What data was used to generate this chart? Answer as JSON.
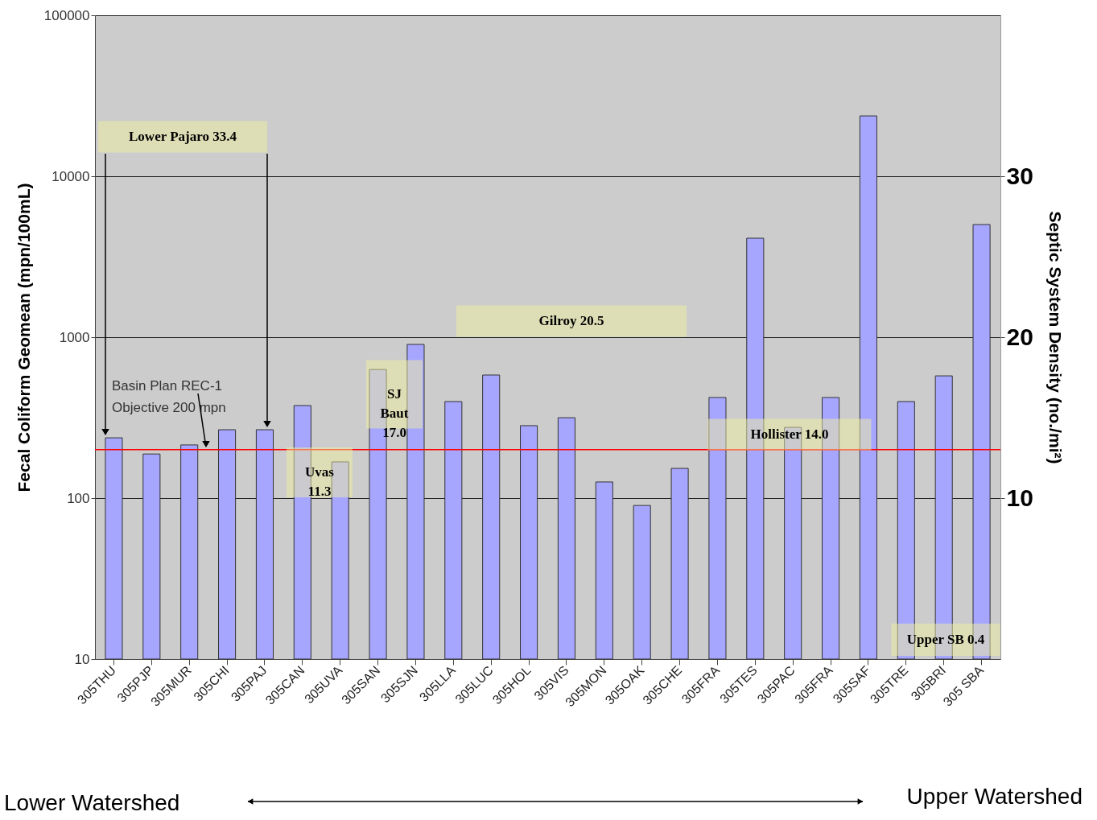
{
  "chart_data": {
    "type": "bar",
    "ylabel": "Fecal Coliform Geomean (mpn/100mL)",
    "y2label": "Septic System Density (no./mi²)",
    "categories": [
      "305THU",
      "305PJP",
      "305MUR",
      "305CHI",
      "305PAJ",
      "305CAN",
      "305UVA",
      "305SAN",
      "305SJN",
      "305LLA",
      "305LUC",
      "305HOL",
      "305VIS",
      "305MON",
      "305OAK",
      "305CHE",
      "305FRA",
      "305TES",
      "305PAC",
      "305FRA",
      "305SAF",
      "305TRE",
      "305BRI",
      "305 SBA"
    ],
    "series": [
      {
        "color": "#a6a6ff",
        "values": [
          237,
          188,
          214,
          266,
          266,
          376,
          168,
          630,
          902,
          398,
          582,
          282,
          316,
          126,
          90,
          153,
          422,
          4120,
          275,
          422,
          23700,
          398,
          575,
          5010
        ]
      }
    ],
    "log": true,
    "ylim": [
      10,
      100000
    ],
    "yticks": [
      10,
      100,
      1000,
      10000,
      100000
    ],
    "y2lim": [
      0,
      40
    ],
    "y2ticks": [
      10,
      20,
      30
    ],
    "grid": "y",
    "ref_lines": [
      {
        "axis": "y",
        "value": 200,
        "label": "Basin Plan REC-1\nObjective 200 mpn",
        "color": "#ff0000"
      }
    ],
    "annotations": [
      "Lower Pajaro 33.4",
      "Gilroy 20.5",
      "SJ\nBaut\n17.0",
      "Uvas\n11.3",
      "Hollister 14.0",
      "Upper SB 0.4",
      "Lower Watershed",
      "Upper Watershed"
    ]
  }
}
